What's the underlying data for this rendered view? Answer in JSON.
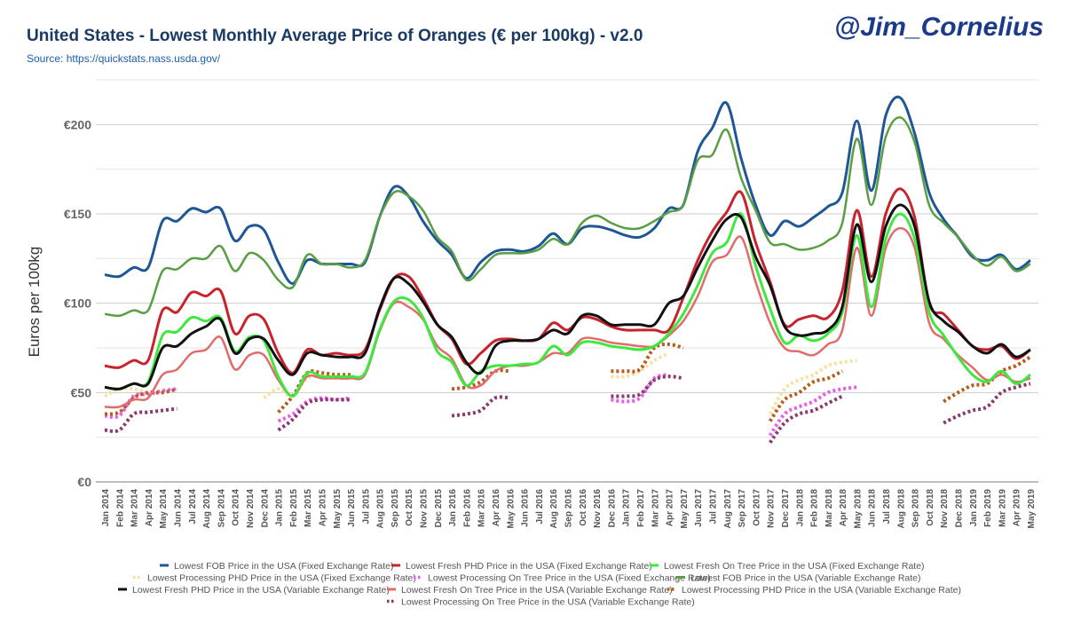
{
  "header": {
    "title": "United States - Lowest Monthly Average Price of Oranges (€ per 100kg) - v2.0",
    "source": "Source: https://quickstats.nass.usda.gov/",
    "handle": "@Jim_Cornelius"
  },
  "chart_data": {
    "type": "line",
    "title": "United States - Lowest Monthly Average Price of Oranges (€ per 100kg) - v2.0",
    "ylabel": "Euros per 100kg",
    "xlabel": "",
    "ylim": [
      0,
      225
    ],
    "yticks": [
      {
        "value": 0,
        "label": "€0"
      },
      {
        "value": 50,
        "label": "€50"
      },
      {
        "value": 100,
        "label": "€100"
      },
      {
        "value": 150,
        "label": "€150"
      },
      {
        "value": 200,
        "label": "€200"
      }
    ],
    "grid": true,
    "legend_position": "bottom",
    "x": [
      "Jan 2014",
      "Feb 2014",
      "Mar 2014",
      "Apr 2014",
      "May 2014",
      "Jun 2014",
      "Jul 2014",
      "Aug 2014",
      "Sep 2014",
      "Oct 2014",
      "Nov 2014",
      "Dec 2014",
      "Jan 2015",
      "Feb 2015",
      "Mar 2015",
      "Apr 2015",
      "May 2015",
      "Jun 2015",
      "Jul 2015",
      "Aug 2015",
      "Sep 2015",
      "Oct 2015",
      "Nov 2015",
      "Dec 2015",
      "Jan 2016",
      "Feb 2016",
      "Mar 2016",
      "Apr 2016",
      "May 2016",
      "Jun 2016",
      "Jul 2016",
      "Aug 2016",
      "Sep 2016",
      "Oct 2016",
      "Nov 2016",
      "Dec 2016",
      "Jan 2017",
      "Feb 2017",
      "Mar 2017",
      "Apr 2017",
      "May 2017",
      "Jun 2017",
      "Jul 2017",
      "Aug 2017",
      "Sep 2017",
      "Oct 2017",
      "Nov 2017",
      "Dec 2017",
      "Jan 2018",
      "Feb 2018",
      "Mar 2018",
      "Apr 2018",
      "May 2018",
      "Jun 2018",
      "Jul 2018",
      "Aug 2018",
      "Sep 2018",
      "Oct 2018",
      "Nov 2018",
      "Dec 2018",
      "Jan 2019",
      "Feb 2019",
      "Mar 2019",
      "Apr 2019",
      "May 2019"
    ],
    "series": [
      {
        "name": "Lowest FOB Price in the USA (Fixed Exchange Rate)",
        "color": "#1f5796",
        "dash": false,
        "width": 3,
        "values": [
          116,
          115,
          120,
          120,
          146,
          146,
          153,
          151,
          153,
          135,
          143,
          141,
          123,
          111,
          124,
          122,
          122,
          122,
          123,
          148,
          165,
          160,
          146,
          135,
          127,
          114,
          123,
          129,
          130,
          129,
          132,
          139,
          133,
          142,
          143,
          141,
          138,
          137,
          142,
          153,
          155,
          185,
          198,
          212,
          181,
          155,
          138,
          146,
          143,
          148,
          154,
          162,
          202,
          163,
          205,
          215,
          195,
          162,
          147,
          137,
          126,
          124,
          127,
          119,
          124
        ]
      },
      {
        "name": "Lowest Fresh PHD Price in the USA (Fixed Exchange Rate)",
        "color": "#c8232c",
        "dash": false,
        "width": 3,
        "values": [
          65,
          64,
          68,
          68,
          96,
          95,
          106,
          104,
          107,
          83,
          93,
          91,
          72,
          61,
          74,
          71,
          72,
          71,
          74,
          96,
          114,
          115,
          103,
          88,
          80,
          66,
          72,
          79,
          80,
          79,
          80,
          89,
          85,
          92,
          91,
          87,
          85,
          85,
          85,
          85,
          103,
          124,
          140,
          151,
          162,
          134,
          112,
          88,
          91,
          93,
          92,
          107,
          152,
          115,
          150,
          164,
          148,
          100,
          94,
          85,
          76,
          74,
          76,
          69,
          74
        ]
      },
      {
        "name": "Lowest Fresh On Tree Price in the USA (Fixed Exchange Rate)",
        "color": "#3ee83e",
        "dash": false,
        "width": 3,
        "values": [
          53,
          52,
          55,
          56,
          82,
          84,
          92,
          90,
          92,
          73,
          81,
          79,
          59,
          48,
          61,
          59,
          59,
          59,
          61,
          85,
          101,
          102,
          92,
          73,
          67,
          54,
          62,
          65,
          65,
          66,
          67,
          76,
          71,
          78,
          78,
          76,
          75,
          74,
          76,
          83,
          94,
          110,
          128,
          134,
          150,
          121,
          97,
          78,
          82,
          79,
          83,
          95,
          138,
          98,
          136,
          150,
          136,
          95,
          82,
          70,
          60,
          56,
          62,
          55,
          60
        ]
      },
      {
        "name": "Lowest Processing PHD Price in the USA (Fixed Exchange Rate)",
        "color": "#f8e0a0",
        "dash": true,
        "width": 4,
        "values": [
          48,
          52,
          52,
          50,
          50,
          null,
          null,
          null,
          null,
          null,
          null,
          47,
          52,
          48,
          58,
          59,
          58,
          58,
          null,
          null,
          null,
          null,
          null,
          null,
          null,
          null,
          null,
          null,
          null,
          null,
          null,
          null,
          null,
          null,
          null,
          59,
          59,
          62,
          68,
          72,
          null,
          null,
          null,
          null,
          null,
          null,
          38,
          52,
          57,
          60,
          65,
          67,
          68,
          null,
          null,
          null,
          null,
          null,
          null,
          null,
          null,
          null,
          null,
          null,
          null
        ]
      },
      {
        "name": "Lowest Processing On Tree Price in the USA (Fixed Exchange Rate)",
        "color": "#e860e8",
        "dash": true,
        "width": 4,
        "values": [
          37,
          37,
          48,
          49,
          51,
          52,
          null,
          null,
          null,
          null,
          null,
          null,
          34,
          38,
          45,
          47,
          46,
          47,
          null,
          null,
          null,
          null,
          null,
          null,
          null,
          null,
          null,
          null,
          null,
          null,
          null,
          null,
          null,
          null,
          null,
          46,
          45,
          47,
          58,
          60,
          null,
          null,
          null,
          null,
          null,
          null,
          26,
          38,
          42,
          45,
          50,
          52,
          53,
          null,
          null,
          null,
          null,
          null,
          null,
          null,
          null,
          null,
          null,
          null,
          null
        ]
      },
      {
        "name": "Lowest FOB Price in the USA (Variable Exchange Rate)",
        "color": "#5a9e44",
        "dash": false,
        "width": 2.5,
        "values": [
          94,
          93,
          96,
          96,
          118,
          119,
          125,
          125,
          132,
          118,
          128,
          124,
          113,
          109,
          127,
          122,
          122,
          120,
          124,
          148,
          162,
          160,
          152,
          137,
          129,
          113,
          119,
          127,
          128,
          128,
          130,
          136,
          133,
          145,
          149,
          145,
          142,
          142,
          146,
          151,
          155,
          180,
          183,
          197,
          170,
          152,
          134,
          133,
          130,
          131,
          135,
          145,
          192,
          155,
          193,
          204,
          190,
          155,
          145,
          137,
          127,
          121,
          126,
          118,
          122
        ]
      },
      {
        "name": "Lowest Fresh PHD Price in the USA (Variable Exchange Rate)",
        "color": "#111111",
        "dash": false,
        "width": 3,
        "values": [
          53,
          52,
          55,
          55,
          75,
          76,
          83,
          87,
          91,
          72,
          80,
          80,
          68,
          60,
          72,
          71,
          70,
          70,
          72,
          97,
          114,
          111,
          101,
          88,
          81,
          67,
          61,
          76,
          79,
          79,
          80,
          85,
          83,
          93,
          93,
          88,
          88,
          88,
          88,
          100,
          104,
          120,
          135,
          147,
          148,
          126,
          110,
          87,
          82,
          83,
          85,
          98,
          144,
          112,
          143,
          155,
          143,
          101,
          90,
          84,
          76,
          72,
          77,
          70,
          74
        ]
      },
      {
        "name": "Lowest Fresh On Tree Price in the USA (Variable Exchange Rate)",
        "color": "#e06c6c",
        "dash": false,
        "width": 2.5,
        "values": [
          42,
          42,
          46,
          47,
          60,
          63,
          72,
          74,
          81,
          63,
          71,
          71,
          57,
          48,
          59,
          58,
          58,
          58,
          60,
          84,
          100,
          98,
          91,
          76,
          69,
          54,
          54,
          62,
          65,
          65,
          67,
          72,
          72,
          80,
          80,
          78,
          77,
          76,
          76,
          82,
          90,
          104,
          123,
          127,
          137,
          112,
          89,
          75,
          73,
          71,
          77,
          85,
          131,
          93,
          131,
          142,
          131,
          89,
          80,
          71,
          64,
          57,
          60,
          56,
          58
        ]
      },
      {
        "name": "Lowest Processing PHD Price in the USA (Variable Exchange Rate)",
        "color": "#b85c1c",
        "dash": true,
        "width": 4,
        "values": [
          38,
          39,
          47,
          50,
          50,
          52,
          null,
          null,
          null,
          null,
          null,
          null,
          39,
          48,
          61,
          61,
          60,
          60,
          null,
          null,
          null,
          null,
          null,
          null,
          52,
          53,
          56,
          62,
          62,
          null,
          null,
          null,
          null,
          null,
          null,
          62,
          62,
          63,
          75,
          77,
          75,
          null,
          null,
          null,
          null,
          null,
          34,
          46,
          50,
          56,
          58,
          62,
          null,
          null,
          null,
          null,
          null,
          null,
          45,
          50,
          54,
          55,
          62,
          65,
          70
        ]
      },
      {
        "name": "Lowest Processing On Tree Price in the USA (Variable Exchange Rate)",
        "color": "#8b3a6e",
        "dash": true,
        "width": 4,
        "values": [
          29,
          29,
          38,
          39,
          40,
          41,
          null,
          null,
          null,
          null,
          null,
          null,
          29,
          35,
          44,
          46,
          46,
          46,
          null,
          null,
          null,
          null,
          null,
          null,
          37,
          38,
          40,
          47,
          47,
          null,
          null,
          null,
          null,
          null,
          null,
          48,
          48,
          49,
          57,
          59,
          58,
          null,
          null,
          null,
          null,
          null,
          22,
          33,
          38,
          40,
          44,
          48,
          null,
          null,
          null,
          null,
          null,
          null,
          33,
          37,
          40,
          42,
          50,
          53,
          55
        ]
      }
    ]
  }
}
